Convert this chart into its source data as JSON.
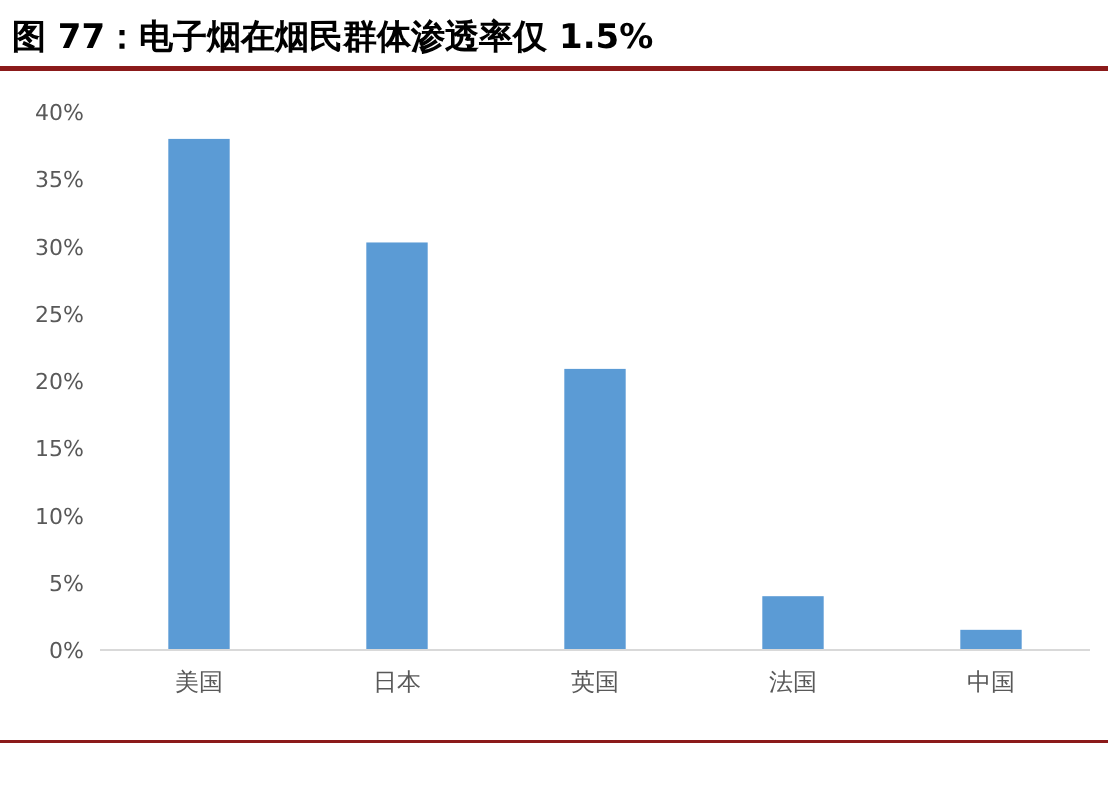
{
  "chart_data": {
    "type": "bar",
    "title": "图 77：电子烟在烟民群体渗透率仅 1.5%",
    "categories": [
      "美国",
      "日本",
      "英国",
      "法国",
      "中国"
    ],
    "values": [
      38,
      30.3,
      20.9,
      4,
      1.5
    ],
    "color": "#5b9bd5",
    "ylim": [
      0,
      40
    ],
    "yticks": [
      {
        "value": 0,
        "label": "0%"
      },
      {
        "value": 5,
        "label": "5%"
      },
      {
        "value": 10,
        "label": "10%"
      },
      {
        "value": 15,
        "label": "15%"
      },
      {
        "value": 20,
        "label": "20%"
      },
      {
        "value": 25,
        "label": "25%"
      },
      {
        "value": 30,
        "label": "30%"
      },
      {
        "value": 35,
        "label": "35%"
      },
      {
        "value": 40,
        "label": "40%"
      }
    ]
  }
}
